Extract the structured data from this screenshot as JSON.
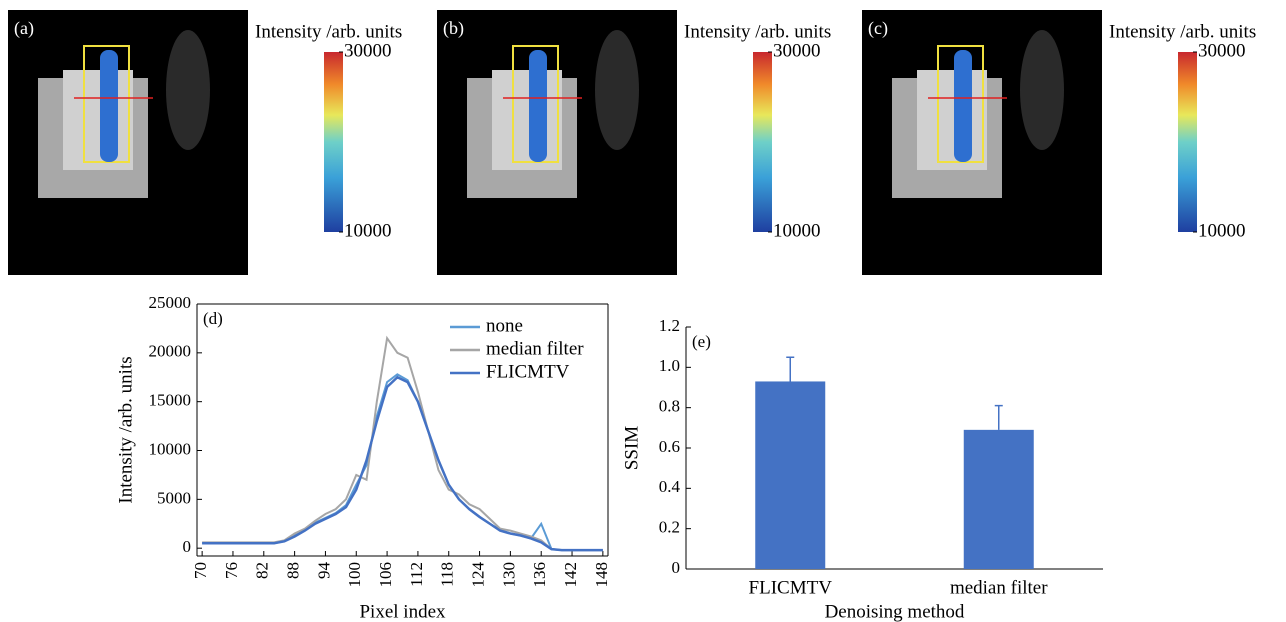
{
  "panels": [
    {
      "label": "(a)",
      "colorbar": {
        "title": "Intensity /arb. units",
        "lim": [
          10000,
          30000
        ],
        "ticks": [
          10000,
          30000
        ]
      }
    },
    {
      "label": "(b)",
      "colorbar": {
        "title": "Intensity /arb. units",
        "lim": [
          10000,
          30000
        ],
        "ticks": [
          10000,
          30000
        ]
      }
    },
    {
      "label": "(c)",
      "colorbar": {
        "title": "Intensity /arb. units",
        "lim": [
          10000,
          30000
        ],
        "ticks": [
          10000,
          30000
        ]
      }
    }
  ],
  "chart_data": [
    {
      "type": "line",
      "label": "(d)",
      "x_label": "Pixel index",
      "y_label": "Intensity /arb. units",
      "x": [
        70,
        72,
        74,
        76,
        78,
        80,
        82,
        84,
        86,
        88,
        90,
        92,
        94,
        96,
        98,
        100,
        102,
        104,
        106,
        108,
        110,
        112,
        114,
        116,
        118,
        120,
        122,
        124,
        126,
        128,
        130,
        132,
        134,
        136,
        138,
        140,
        142,
        144,
        146,
        148
      ],
      "series": [
        {
          "name": "none",
          "color": "#5b9bd5",
          "values": [
            500,
            500,
            500,
            500,
            500,
            500,
            500,
            500,
            700,
            1300,
            1900,
            2600,
            3100,
            3600,
            4400,
            6500,
            8500,
            13500,
            17000,
            17800,
            17200,
            15000,
            12000,
            9000,
            6500,
            5000,
            4000,
            3200,
            2500,
            1900,
            1500,
            1300,
            1000,
            2500,
            -100,
            -200,
            -200,
            -200,
            -200,
            -200
          ]
        },
        {
          "name": "median filter",
          "color": "#a6a6a6",
          "values": [
            600,
            600,
            600,
            600,
            600,
            600,
            600,
            600,
            800,
            1500,
            2000,
            2800,
            3500,
            4000,
            5000,
            7500,
            7000,
            15000,
            21500,
            20000,
            19500,
            16000,
            12000,
            8000,
            6000,
            5500,
            4500,
            4000,
            3000,
            2000,
            1800,
            1500,
            1200,
            800,
            -100,
            -200,
            -200,
            -200,
            -200,
            -200
          ]
        },
        {
          "name": "FLICMTV",
          "color": "#4472c4",
          "values": [
            500,
            500,
            500,
            500,
            500,
            500,
            500,
            500,
            700,
            1200,
            1800,
            2500,
            3000,
            3500,
            4200,
            6000,
            9000,
            13000,
            16500,
            17500,
            17000,
            15000,
            12000,
            9000,
            6500,
            5000,
            4000,
            3200,
            2500,
            1800,
            1500,
            1300,
            1000,
            600,
            -100,
            -200,
            -200,
            -200,
            -200,
            -200
          ]
        }
      ],
      "xlim": [
        69,
        149
      ],
      "xticks": [
        70,
        76,
        82,
        88,
        94,
        100,
        106,
        112,
        118,
        124,
        130,
        136,
        142,
        148
      ],
      "ylim": [
        -800,
        25000
      ],
      "yticks": [
        0,
        5000,
        10000,
        15000,
        20000,
        25000
      ]
    },
    {
      "type": "bar",
      "label": "(e)",
      "x_label": "Denoising method",
      "y_label": "SSIM",
      "color": "#4472c4",
      "categories": [
        "FLICMTV",
        "median filter"
      ],
      "values": [
        0.93,
        0.69
      ],
      "errors": [
        0.12,
        0.12
      ],
      "ylim": [
        0,
        1.2
      ],
      "yticks": [
        0,
        0.2,
        0.4,
        0.6,
        0.8,
        {
          "value": 1,
          "label": "1.0"
        },
        1.2
      ]
    }
  ]
}
